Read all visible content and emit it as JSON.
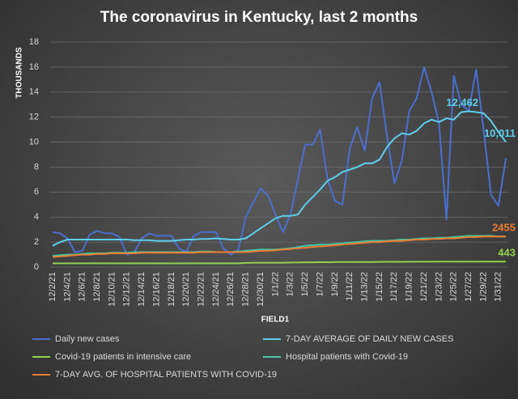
{
  "chart_data": {
    "type": "line",
    "title": "The coronavirus in Kentucky, last 2 months",
    "y_label": "THOUSANDS",
    "x_label": "FIELD1",
    "categories": [
      "12/2/21",
      null,
      "12/4/21",
      null,
      "12/6/21",
      null,
      "12/8/21",
      null,
      "12/10/21",
      null,
      "12/12/21",
      null,
      "12/14/21",
      null,
      "12/16/21",
      null,
      "12/18/21",
      null,
      "12/20/21",
      null,
      "12/22/21",
      null,
      "12/24/21",
      null,
      "12/26/21",
      null,
      "12/28/21",
      null,
      "12/30/21",
      null,
      "1/1/22",
      null,
      "1/3/22",
      null,
      "1/5/22",
      null,
      "1/7/22",
      null,
      "1/9/22",
      null,
      "1/11/22",
      null,
      "1/13/22",
      null,
      "1/15/22",
      null,
      "1/17/22",
      null,
      "1/19/22",
      null,
      "1/21/22",
      null,
      "1/23/22",
      null,
      "1/25/22",
      null,
      "1/27/22",
      null,
      "1/29/22",
      null,
      "1/31/22",
      null
    ],
    "series": [
      {
        "name": "Daily new cases",
        "color": "#4a6fd0",
        "values": [
          2.8,
          2.7,
          2.3,
          1.2,
          1.3,
          2.6,
          2.9,
          2.7,
          2.7,
          2.4,
          1.0,
          1.2,
          2.3,
          2.7,
          2.5,
          2.5,
          2.5,
          1.5,
          1.2,
          2.5,
          2.8,
          2.8,
          2.8,
          1.5,
          1.0,
          1.4,
          4.0,
          5.2,
          6.3,
          5.7,
          4.2,
          2.8,
          4.2,
          7.0,
          9.8,
          9.8,
          11.0,
          7.0,
          5.3,
          5.0,
          9.5,
          11.2,
          9.3,
          13.5,
          14.8,
          10.5,
          6.7,
          8.5,
          12.5,
          13.5,
          16.0,
          14.0,
          11.5,
          3.8,
          15.3,
          13.0,
          12.5,
          15.8,
          11.0,
          5.8,
          4.9,
          8.7
        ]
      },
      {
        "name": "7-DAY AVERAGE OF DAILY NEW CASES",
        "color": "#5ccfee",
        "values": [
          1.7,
          2.0,
          2.2,
          2.2,
          2.2,
          2.2,
          2.2,
          2.2,
          2.2,
          2.2,
          2.2,
          2.15,
          2.15,
          2.15,
          2.1,
          2.1,
          2.1,
          2.15,
          2.2,
          2.2,
          2.25,
          2.25,
          2.3,
          2.25,
          2.2,
          2.2,
          2.3,
          2.7,
          3.1,
          3.5,
          3.9,
          4.1,
          4.1,
          4.2,
          5.0,
          5.6,
          6.2,
          6.9,
          7.2,
          7.6,
          7.8,
          8.0,
          8.3,
          8.3,
          8.6,
          9.6,
          10.3,
          10.7,
          10.6,
          10.9,
          11.5,
          11.8,
          11.6,
          11.9,
          11.8,
          12.4,
          12.462,
          12.4,
          12.3,
          11.7,
          10.8,
          10.011
        ],
        "value_labels": [
          null,
          null,
          null,
          null,
          null,
          null,
          null,
          null,
          null,
          null,
          null,
          null,
          null,
          null,
          null,
          null,
          null,
          null,
          null,
          null,
          null,
          null,
          null,
          null,
          null,
          null,
          null,
          null,
          null,
          null,
          null,
          null,
          null,
          null,
          null,
          null,
          null,
          null,
          null,
          null,
          null,
          null,
          null,
          null,
          null,
          null,
          null,
          null,
          null,
          null,
          null,
          null,
          null,
          null,
          null,
          null,
          "12,462",
          null,
          null,
          null,
          null,
          "10,011"
        ]
      },
      {
        "name": "Covid-19 patients in intensive care",
        "color": "#92d050",
        "values": [
          0.3,
          0.3,
          0.3,
          0.3,
          0.3,
          0.3,
          0.3,
          0.3,
          0.3,
          0.3,
          0.3,
          0.3,
          0.3,
          0.3,
          0.3,
          0.3,
          0.3,
          0.3,
          0.3,
          0.3,
          0.3,
          0.3,
          0.3,
          0.3,
          0.3,
          0.3,
          0.33,
          0.35,
          0.35,
          0.35,
          0.35,
          0.35,
          0.36,
          0.37,
          0.38,
          0.38,
          0.39,
          0.39,
          0.4,
          0.4,
          0.4,
          0.41,
          0.41,
          0.41,
          0.42,
          0.42,
          0.42,
          0.42,
          0.43,
          0.43,
          0.43,
          0.43,
          0.44,
          0.44,
          0.44,
          0.44,
          0.44,
          0.44,
          0.44,
          0.44,
          0.44,
          0.443
        ],
        "value_labels": [
          null,
          null,
          null,
          null,
          null,
          null,
          null,
          null,
          null,
          null,
          null,
          null,
          null,
          null,
          null,
          null,
          null,
          null,
          null,
          null,
          null,
          null,
          null,
          null,
          null,
          null,
          null,
          null,
          null,
          null,
          null,
          null,
          null,
          null,
          null,
          null,
          null,
          null,
          null,
          null,
          null,
          null,
          null,
          null,
          null,
          null,
          null,
          null,
          null,
          null,
          null,
          null,
          null,
          null,
          null,
          null,
          null,
          null,
          null,
          null,
          null,
          "443"
        ]
      },
      {
        "name": "Hospital patients with Covid-19",
        "color": "#3cc9a8",
        "values": [
          0.9,
          0.95,
          1.0,
          1.0,
          1.05,
          1.1,
          1.1,
          1.1,
          1.15,
          1.15,
          1.15,
          1.2,
          1.2,
          1.2,
          1.2,
          1.2,
          1.2,
          1.2,
          1.2,
          1.2,
          1.25,
          1.25,
          1.2,
          1.2,
          1.2,
          1.25,
          1.3,
          1.35,
          1.4,
          1.4,
          1.4,
          1.45,
          1.5,
          1.6,
          1.7,
          1.75,
          1.8,
          1.8,
          1.85,
          1.9,
          1.95,
          2.0,
          2.05,
          2.1,
          2.1,
          2.1,
          2.15,
          2.2,
          2.2,
          2.25,
          2.3,
          2.3,
          2.35,
          2.35,
          2.4,
          2.45,
          2.5,
          2.5,
          2.5,
          2.5,
          2.45,
          2.45
        ]
      },
      {
        "name": "7-DAY AVG. OF HOSPITAL PATIENTS WITH COVID-19",
        "color": "#ed7d31",
        "values": [
          0.8,
          0.85,
          0.9,
          0.95,
          1.0,
          1.0,
          1.05,
          1.05,
          1.1,
          1.1,
          1.1,
          1.1,
          1.15,
          1.15,
          1.15,
          1.15,
          1.15,
          1.15,
          1.15,
          1.15,
          1.2,
          1.2,
          1.2,
          1.2,
          1.2,
          1.2,
          1.2,
          1.25,
          1.3,
          1.3,
          1.35,
          1.4,
          1.45,
          1.5,
          1.55,
          1.6,
          1.65,
          1.7,
          1.75,
          1.8,
          1.85,
          1.9,
          1.95,
          2.0,
          2.0,
          2.05,
          2.1,
          2.1,
          2.15,
          2.2,
          2.2,
          2.25,
          2.25,
          2.3,
          2.3,
          2.35,
          2.4,
          2.4,
          2.45,
          2.45,
          2.45,
          2.455
        ],
        "value_labels": [
          null,
          null,
          null,
          null,
          null,
          null,
          null,
          null,
          null,
          null,
          null,
          null,
          null,
          null,
          null,
          null,
          null,
          null,
          null,
          null,
          null,
          null,
          null,
          null,
          null,
          null,
          null,
          null,
          null,
          null,
          null,
          null,
          null,
          null,
          null,
          null,
          null,
          null,
          null,
          null,
          null,
          null,
          null,
          null,
          null,
          null,
          null,
          null,
          null,
          null,
          null,
          null,
          null,
          null,
          null,
          null,
          null,
          null,
          null,
          null,
          null,
          "2455"
        ]
      }
    ],
    "ylim": [
      0,
      18
    ],
    "yticks": [
      0,
      2,
      4,
      6,
      8,
      10,
      12,
      14,
      16,
      18
    ],
    "grid": true
  }
}
